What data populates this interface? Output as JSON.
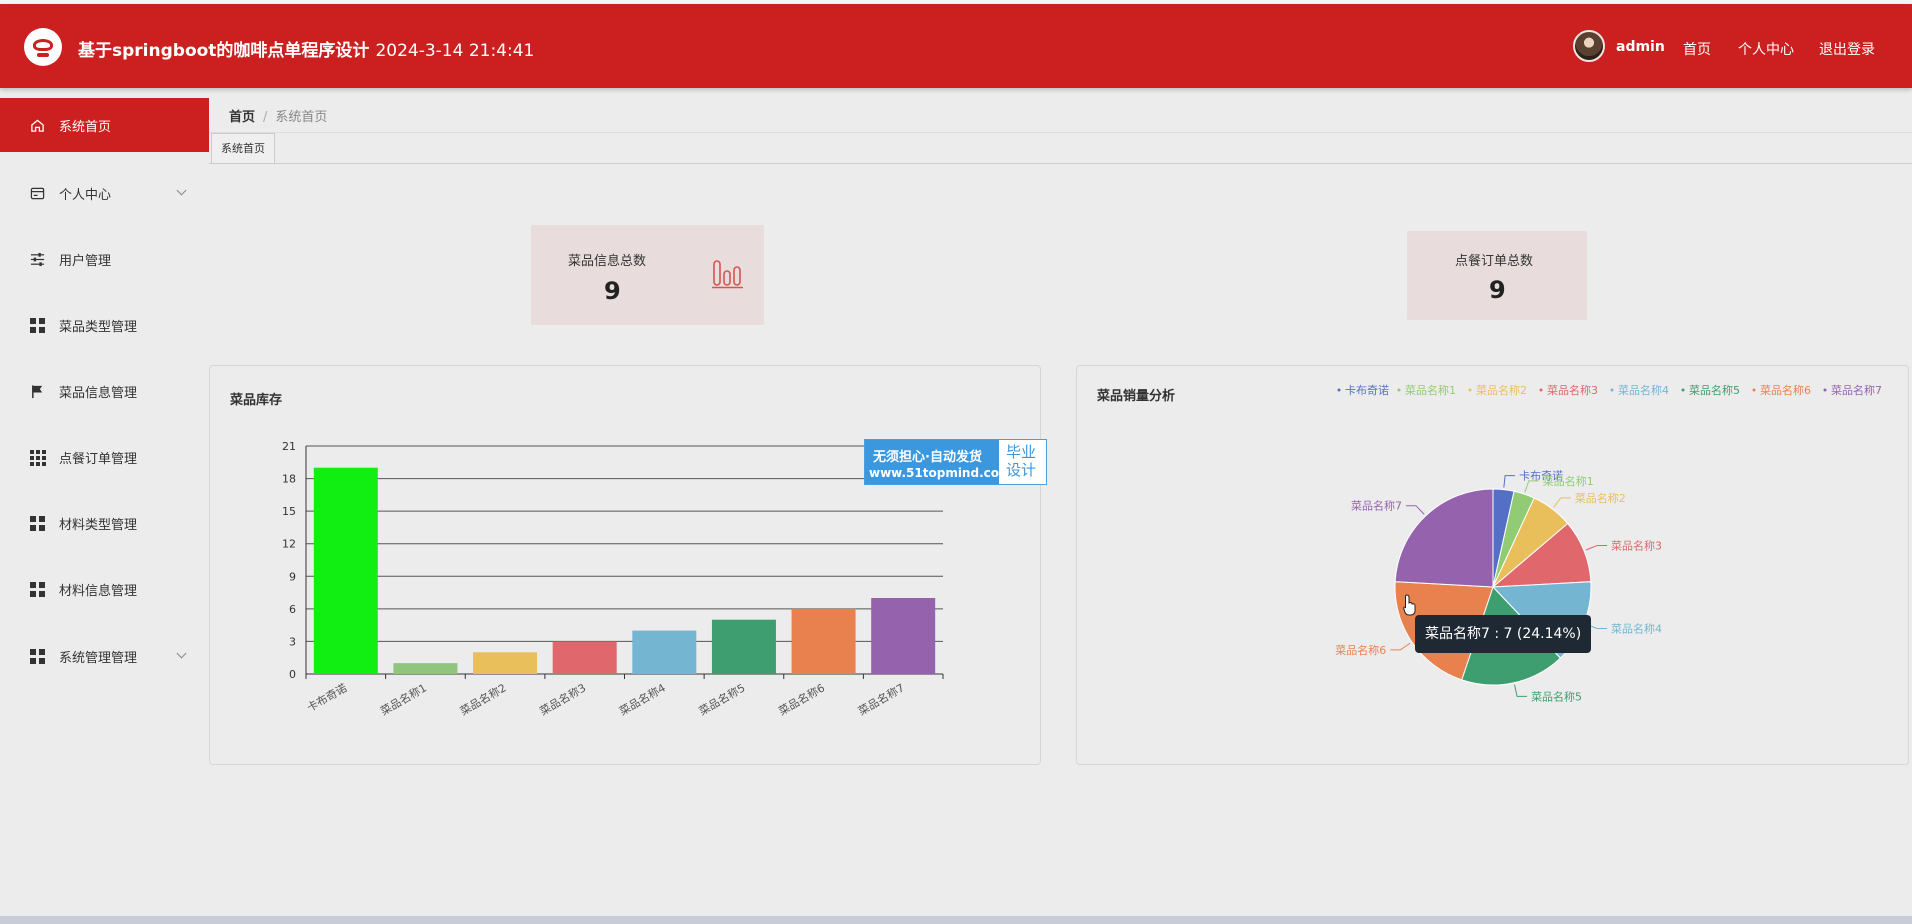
{
  "header": {
    "title": "基于springboot的咖啡点单程序设计",
    "datetime": "2024-3-14 21:4:41",
    "username": "admin",
    "nav": {
      "home": "首页",
      "profile": "个人中心",
      "logout": "退出登录"
    },
    "accent_color": "#cc1f1f"
  },
  "sidebar": {
    "items": [
      {
        "label": "系统首页",
        "icon": "home-icon",
        "active": true
      },
      {
        "label": "个人中心",
        "icon": "card-icon",
        "has_submenu": true
      },
      {
        "label": "用户管理",
        "icon": "sliders-icon"
      },
      {
        "label": "菜品类型管理",
        "icon": "grid-icon"
      },
      {
        "label": "菜品信息管理",
        "icon": "flag-icon"
      },
      {
        "label": "点餐订单管理",
        "icon": "grid-dots-icon"
      },
      {
        "label": "材料类型管理",
        "icon": "grid-icon"
      },
      {
        "label": "材料信息管理",
        "icon": "grid-icon"
      },
      {
        "label": "系统管理管理",
        "icon": "grid-icon",
        "has_submenu": true
      }
    ]
  },
  "breadcrumb": {
    "home": "首页",
    "separator": "/",
    "current": "系统首页"
  },
  "tabs": [
    {
      "label": "系统首页"
    }
  ],
  "stats": {
    "dishes": {
      "label": "菜品信息总数",
      "value": "9",
      "icon": "bar-chart-icon"
    },
    "orders": {
      "label": "点餐订单总数",
      "value": "9"
    }
  },
  "watermark": {
    "line1": "无须担心·自动发货",
    "line2": "www.51topmind.com",
    "badge": "毕业设计"
  },
  "tooltip": {
    "text": "菜品名称7 : 7 (24.14%)"
  },
  "chart_data": [
    {
      "type": "bar",
      "title": "菜品库存",
      "categories": [
        "卡布奇诺",
        "菜品名称1",
        "菜品名称2",
        "菜品名称3",
        "菜品名称4",
        "菜品名称5",
        "菜品名称6",
        "菜品名称7"
      ],
      "values": [
        19,
        1,
        2,
        3,
        4,
        5,
        6,
        7
      ],
      "colors": [
        "#11ee11",
        "#91c47c",
        "#e9bf5c",
        "#e0676b",
        "#74b6d2",
        "#3f9e6f",
        "#e9814f",
        "#9563ae"
      ],
      "yticks": [
        0,
        3,
        6,
        9,
        12,
        15,
        18,
        21
      ],
      "ylim": [
        0,
        21
      ],
      "grid": true
    },
    {
      "type": "pie",
      "title": "菜品销量分析",
      "labels": [
        "卡布奇诺",
        "菜品名称1",
        "菜品名称2",
        "菜品名称3",
        "菜品名称4",
        "菜品名称5",
        "菜品名称6",
        "菜品名称7"
      ],
      "values": [
        1,
        1,
        2,
        3,
        4,
        5,
        6,
        7
      ],
      "colors": [
        "#5470c6",
        "#91cc75",
        "#e9bf5c",
        "#e0676b",
        "#74b6d2",
        "#3f9e6f",
        "#e9814f",
        "#9563ae"
      ],
      "legend_position": "top-right"
    }
  ]
}
